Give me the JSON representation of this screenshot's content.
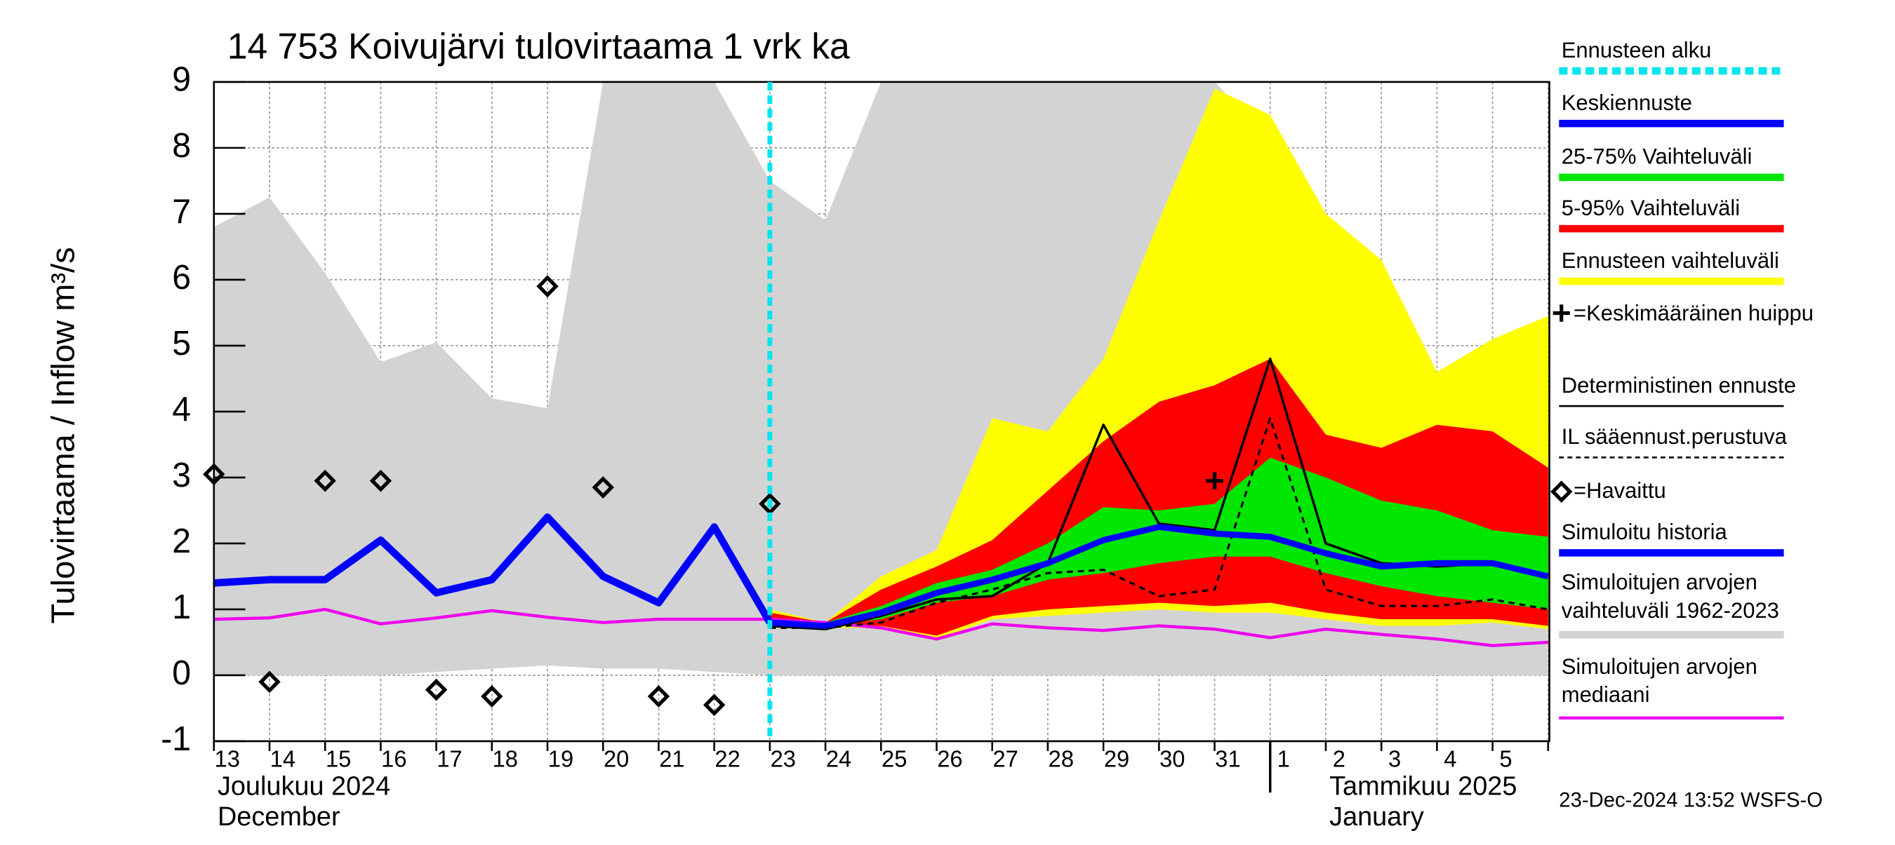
{
  "chart_data": {
    "type": "line",
    "title": "14 753 Koivujärvi tulovirtaama 1 vrk ka",
    "y_label": "Tulovirtaama / Inflow   m³/s",
    "month_labels": [
      "Joulukuu  2024",
      "December",
      "Tammikuu  2025",
      "January"
    ],
    "footer": "23-Dec-2024 13:52 WSFS-O",
    "categories": [
      "13",
      "14",
      "15",
      "16",
      "17",
      "18",
      "19",
      "20",
      "21",
      "22",
      "23",
      "24",
      "25",
      "26",
      "27",
      "28",
      "29",
      "30",
      "31",
      "1",
      "2",
      "3",
      "4",
      "5",
      null
    ],
    "ylim": [
      -1,
      9
    ],
    "yticks": [
      -1,
      0,
      1,
      2,
      3,
      4,
      5,
      6,
      7,
      8,
      9
    ],
    "grid": true,
    "forecast_start": {
      "name": "Ennusteen alku",
      "color": "#00e5ee",
      "category": "23"
    },
    "bands": [
      {
        "name": "Simuloitujen arvojen vaihteluväli 1962-2023",
        "color": "#d3d3d3",
        "upper": [
          6.8,
          7.25,
          6.1,
          4.75,
          5.05,
          4.2,
          4.05,
          9,
          9,
          9,
          7.5,
          6.9,
          9,
          9,
          9,
          9,
          9,
          9,
          9,
          8.1,
          6.6,
          5.3,
          4.6,
          4.0,
          3.6
        ],
        "lower": [
          0,
          0,
          0,
          0,
          0.05,
          0.1,
          0.15,
          0.1,
          0.1,
          0.05,
          0,
          0,
          0,
          0,
          0,
          0,
          0,
          0,
          0,
          0,
          0,
          0,
          0,
          0,
          0
        ]
      },
      {
        "name": "Ennusteen vaihteluväli",
        "color": "#ffff00",
        "upper": [
          null,
          null,
          null,
          null,
          null,
          null,
          null,
          null,
          null,
          null,
          1.0,
          0.8,
          1.5,
          1.9,
          3.9,
          3.7,
          4.8,
          6.9,
          8.9,
          8.5,
          7.0,
          6.3,
          4.6,
          5.1,
          5.45
        ],
        "lower": [
          null,
          null,
          null,
          null,
          null,
          null,
          null,
          null,
          null,
          null,
          0.72,
          0.72,
          0.72,
          0.55,
          0.85,
          0.9,
          0.95,
          1.0,
          0.95,
          0.95,
          0.85,
          0.75,
          0.75,
          0.8,
          0.7
        ]
      },
      {
        "name": "5-95% Vaihteluväli",
        "color": "#ff0000",
        "upper": [
          null,
          null,
          null,
          null,
          null,
          null,
          null,
          null,
          null,
          null,
          0.95,
          0.8,
          1.3,
          1.65,
          2.05,
          2.8,
          3.55,
          4.15,
          4.4,
          4.8,
          3.65,
          3.45,
          3.8,
          3.7,
          3.15
        ],
        "lower": [
          null,
          null,
          null,
          null,
          null,
          null,
          null,
          null,
          null,
          null,
          0.75,
          0.75,
          0.75,
          0.6,
          0.9,
          1.0,
          1.05,
          1.1,
          1.05,
          1.1,
          0.95,
          0.85,
          0.85,
          0.85,
          0.75
        ]
      },
      {
        "name": "25-75% Vaihteluväli",
        "color": "#00e600",
        "upper": [
          null,
          null,
          null,
          null,
          null,
          null,
          null,
          null,
          null,
          null,
          0.85,
          0.8,
          1.05,
          1.4,
          1.6,
          2.0,
          2.55,
          2.5,
          2.6,
          3.3,
          3.0,
          2.65,
          2.5,
          2.2,
          2.1
        ],
        "lower": [
          null,
          null,
          null,
          null,
          null,
          null,
          null,
          null,
          null,
          null,
          0.8,
          0.75,
          0.85,
          1.1,
          1.2,
          1.45,
          1.55,
          1.7,
          1.8,
          1.8,
          1.55,
          1.35,
          1.2,
          1.1,
          1.0
        ]
      }
    ],
    "series": [
      {
        "name": "Simuloitujen arvojen mediaani",
        "color": "#ee00ee",
        "width": 2.5,
        "dash": false,
        "values": [
          0.85,
          0.87,
          1.0,
          0.78,
          0.87,
          0.98,
          0.88,
          0.8,
          0.85,
          0.85,
          0.85,
          0.8,
          0.72,
          0.55,
          0.78,
          0.72,
          0.68,
          0.75,
          0.7,
          0.57,
          0.7,
          0.62,
          0.55,
          0.45,
          0.5
        ]
      },
      {
        "name": "Simuloitu historia",
        "color": "#0000ff",
        "width": 6,
        "dash": false,
        "values": [
          1.4,
          1.45,
          1.45,
          2.05,
          1.25,
          1.45,
          2.4,
          1.5,
          1.1,
          2.25,
          0.8,
          null,
          null,
          null,
          null,
          null,
          null,
          null,
          null,
          null,
          null,
          null,
          null,
          null,
          null
        ]
      },
      {
        "name": "Deterministinen ennuste",
        "color": "#000000",
        "width": 2,
        "dash": false,
        "values": [
          null,
          null,
          null,
          null,
          null,
          null,
          null,
          null,
          null,
          null,
          0.75,
          0.7,
          0.9,
          1.15,
          1.2,
          1.7,
          3.8,
          2.3,
          2.2,
          4.8,
          2.0,
          1.7,
          1.65,
          1.7,
          1.5
        ]
      },
      {
        "name": "IL sääennust.perustuva",
        "color": "#000000",
        "width": 1.8,
        "dash": true,
        "values": [
          null,
          null,
          null,
          null,
          null,
          null,
          null,
          null,
          null,
          null,
          0.72,
          0.72,
          0.8,
          1.1,
          1.3,
          1.55,
          1.6,
          1.2,
          1.3,
          3.9,
          1.3,
          1.05,
          1.05,
          1.15,
          1.0
        ]
      },
      {
        "name": "Keskiennuste",
        "color": "#0000ff",
        "width": 5,
        "dash": false,
        "values": [
          null,
          null,
          null,
          null,
          null,
          null,
          null,
          null,
          null,
          null,
          0.8,
          0.75,
          0.95,
          1.25,
          1.45,
          1.7,
          2.05,
          2.25,
          2.15,
          2.1,
          1.85,
          1.65,
          1.7,
          1.7,
          1.5
        ]
      }
    ],
    "observed": {
      "name": "=Havaittu",
      "color": "#000000",
      "values": [
        3.05,
        -0.1,
        2.95,
        2.95,
        -0.22,
        -0.32,
        5.9,
        2.85,
        -0.32,
        -0.45,
        2.6,
        null,
        null,
        null,
        null,
        null,
        null,
        null,
        null,
        null,
        null,
        null,
        null,
        null,
        null
      ]
    },
    "peak": {
      "name": "=Keskimääräinen huippu",
      "color": "#000000",
      "values": [
        null,
        null,
        null,
        null,
        null,
        null,
        null,
        null,
        null,
        null,
        null,
        null,
        null,
        null,
        null,
        null,
        null,
        null,
        2.95,
        null,
        null,
        null,
        null,
        null,
        null
      ]
    }
  }
}
